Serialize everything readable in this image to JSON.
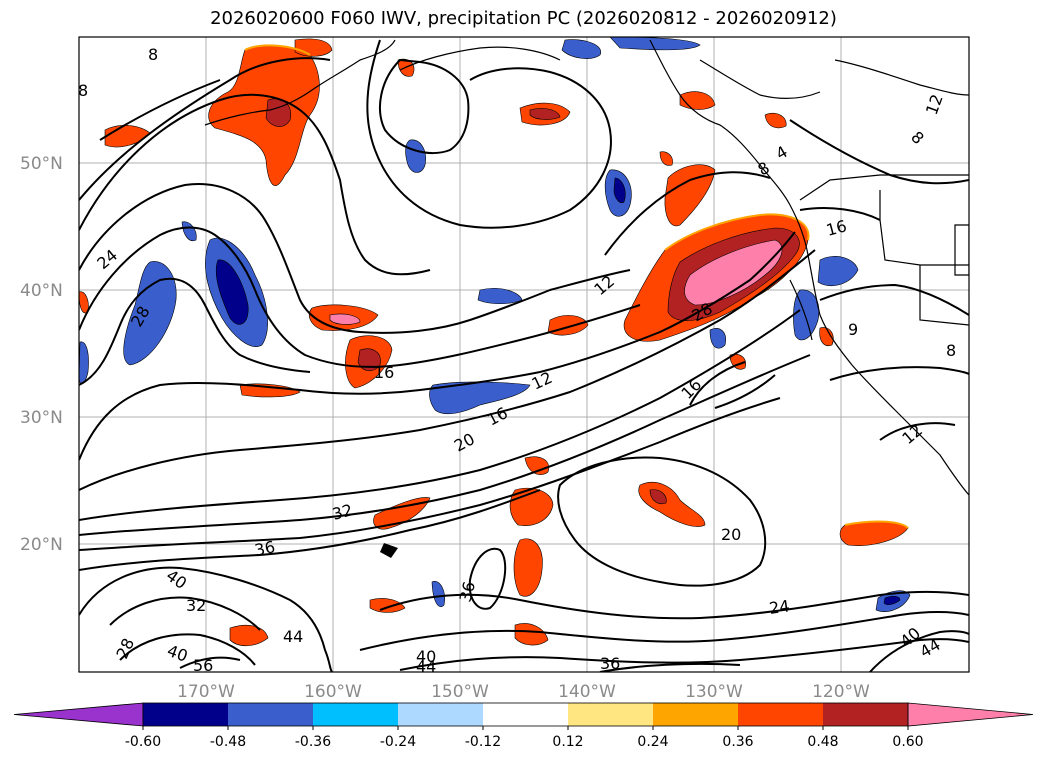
{
  "title": "2026020600 F060 IWV, precipitation PC (2026020812 - 2026020912)",
  "lat_labels": [
    "50°N",
    "40°N",
    "30°N",
    "20°N"
  ],
  "lon_labels": [
    "170°W",
    "160°W",
    "150°W",
    "140°W",
    "130°W",
    "120°W"
  ],
  "contour_labels": [
    "8",
    "8",
    "24",
    "28",
    "16",
    "12",
    "12",
    "16",
    "20",
    "16",
    "32",
    "36",
    "40",
    "32",
    "28",
    "40",
    "56",
    "44",
    "36",
    "40",
    "44",
    "36",
    "24",
    "20",
    "40",
    "44",
    "16",
    "8",
    "4",
    "12",
    "8",
    "28",
    "9",
    "12",
    "8"
  ],
  "colorbar": {
    "ticks": [
      "-0.60",
      "-0.48",
      "-0.36",
      "-0.24",
      "-0.12",
      "0.12",
      "0.24",
      "0.36",
      "0.48",
      "0.60"
    ],
    "colors": [
      "#9a32cd",
      "#00008b",
      "#3a5fcd",
      "#00bfff",
      "#add8ff",
      "#ffffff",
      "#ffe680",
      "#ffa500",
      "#ff4500",
      "#b22222",
      "#ff7fab"
    ]
  },
  "icons": [
    "colorbar-left-arrow-icon",
    "colorbar-right-arrow-icon"
  ]
}
